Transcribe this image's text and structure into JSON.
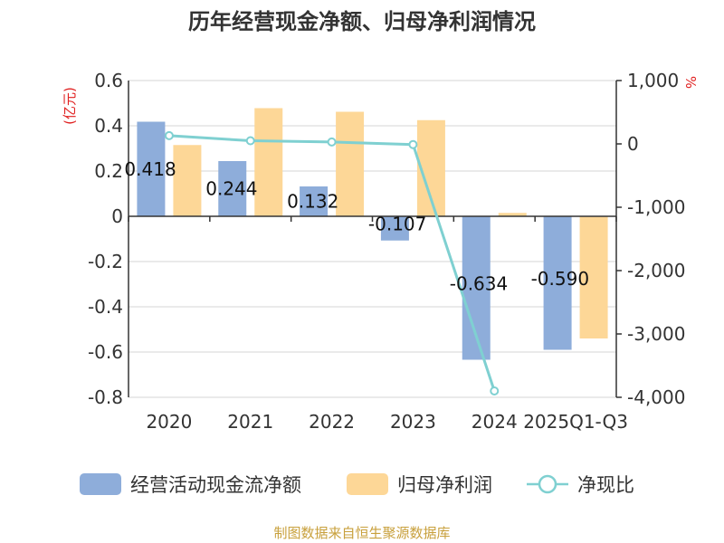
{
  "chart_data": {
    "type": "bar",
    "title": "历年经营现金净额、归母净利润情况",
    "left_axis_unit": "(亿元)",
    "right_axis_unit": "%",
    "categories": [
      "2020",
      "2021",
      "2022",
      "2023",
      "2024",
      "2025Q1-Q3"
    ],
    "left_ylim": [
      -0.8,
      0.6
    ],
    "left_ticks": [
      "0.6",
      "0.4",
      "0.2",
      "0",
      "-0.2",
      "-0.4",
      "-0.6",
      "-0.8"
    ],
    "right_ylim": [
      -4000,
      1000
    ],
    "right_ticks": [
      "1,000",
      "0",
      "-1,000",
      "-2,000",
      "-3,000",
      "-4,000"
    ],
    "grid": true,
    "legend_position": "bottom",
    "series": [
      {
        "name": "经营活动现金流净额",
        "type": "bar",
        "axis": "left",
        "color": "#8EADDA",
        "values": [
          0.418,
          0.244,
          0.132,
          -0.107,
          -0.634,
          -0.59
        ],
        "labels": [
          "0.418",
          "0.244",
          "0.132",
          "-0.107",
          "-0.634",
          "-0.590"
        ]
      },
      {
        "name": "归母净利润",
        "type": "bar",
        "axis": "left",
        "color": "#FDD797",
        "values": [
          0.315,
          0.478,
          0.462,
          0.425,
          0.015,
          -0.54
        ]
      },
      {
        "name": "净现比",
        "type": "line",
        "axis": "right",
        "color": "#7FD0D1",
        "values": [
          130,
          50,
          30,
          -10,
          -3900,
          null
        ]
      }
    ]
  },
  "footer": {
    "source": "制图数据来自恒生聚源数据库"
  }
}
